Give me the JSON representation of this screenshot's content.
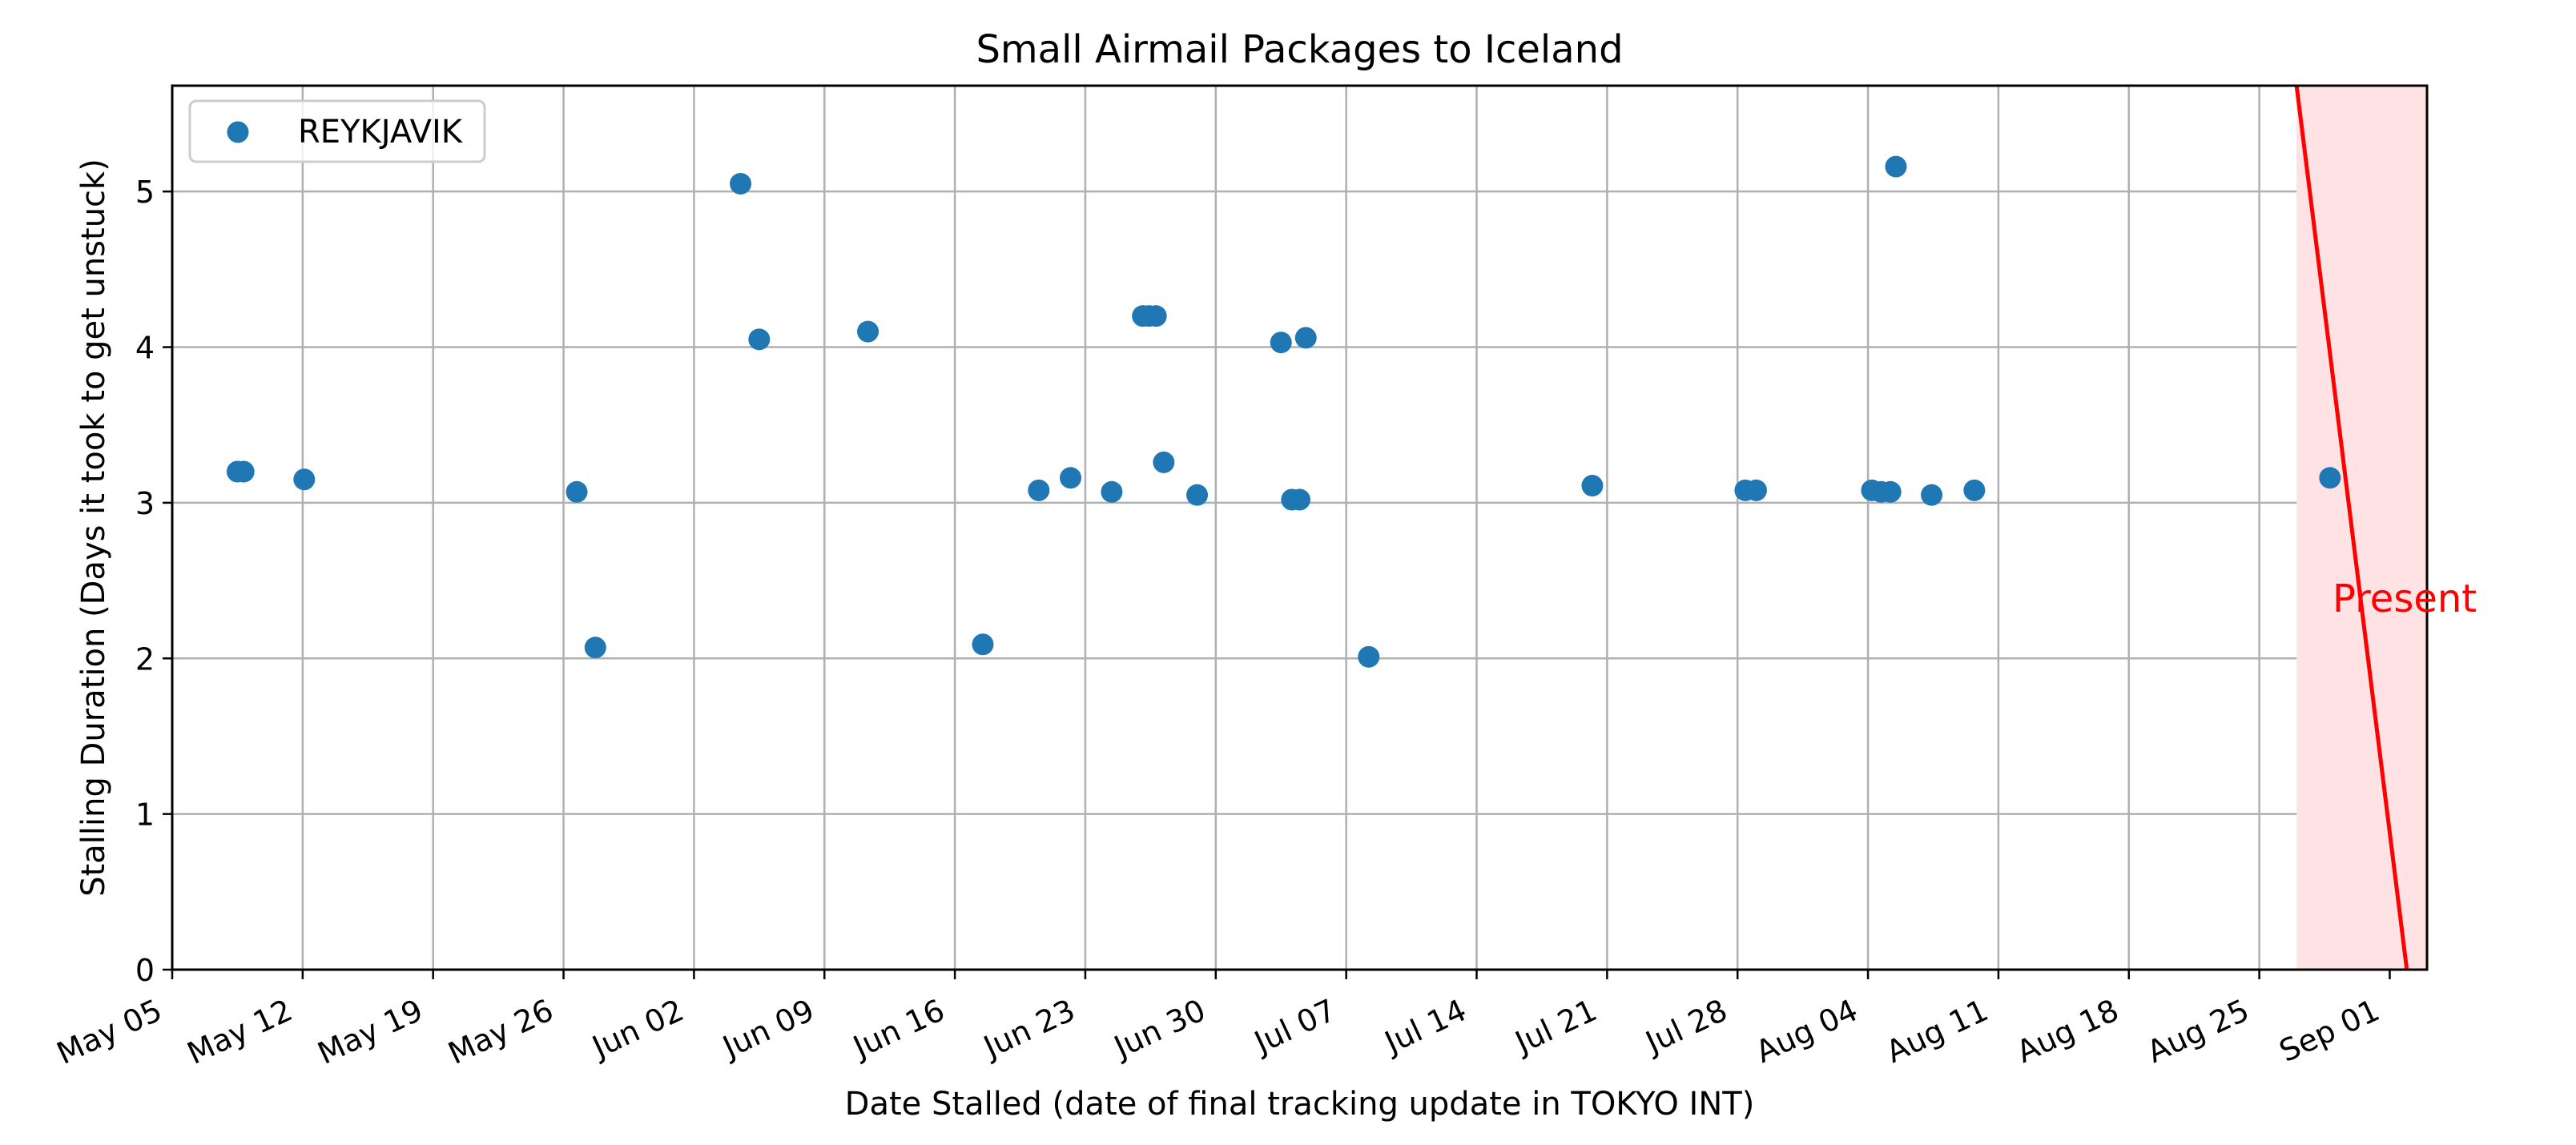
{
  "chart_data": {
    "type": "scatter",
    "title": "Small Airmail Packages to Iceland",
    "xlabel": "Date Stalled (date of final tracking update in TOKYO INT)",
    "ylabel": "Stalling Duration (Days it took to get unstuck)",
    "xlim": [
      "2024-05-05",
      "2024-09-03"
    ],
    "ylim": [
      0,
      5.68
    ],
    "x_ticks": [
      "May 05",
      "May 12",
      "May 19",
      "May 26",
      "Jun 02",
      "Jun 09",
      "Jun 16",
      "Jun 23",
      "Jun 30",
      "Jul 07",
      "Jul 14",
      "Jul 21",
      "Jul 28",
      "Aug 04",
      "Aug 11",
      "Aug 18",
      "Aug 25",
      "Sep 01"
    ],
    "y_ticks": [
      "0",
      "1",
      "2",
      "3",
      "4",
      "5"
    ],
    "grid": true,
    "legend_position": "upper-left",
    "series": [
      {
        "name": "REYKJAVIK",
        "color": "#1f77b4",
        "points": [
          {
            "x": "2024-05-08 12:00",
            "y": 3.2
          },
          {
            "x": "2024-05-08 20:00",
            "y": 3.2
          },
          {
            "x": "2024-05-12 02:00",
            "y": 3.15
          },
          {
            "x": "2024-05-26 17:00",
            "y": 3.07
          },
          {
            "x": "2024-05-27 17:00",
            "y": 2.07
          },
          {
            "x": "2024-06-04 12:00",
            "y": 5.05
          },
          {
            "x": "2024-06-05 12:00",
            "y": 4.05
          },
          {
            "x": "2024-06-11 08:00",
            "y": 4.1
          },
          {
            "x": "2024-06-17 12:00",
            "y": 2.09
          },
          {
            "x": "2024-06-20 12:00",
            "y": 3.08
          },
          {
            "x": "2024-06-22 05:00",
            "y": 3.16
          },
          {
            "x": "2024-06-24 10:00",
            "y": 3.07
          },
          {
            "x": "2024-06-26 02:00",
            "y": 4.2
          },
          {
            "x": "2024-06-26 10:00",
            "y": 4.2
          },
          {
            "x": "2024-06-26 19:00",
            "y": 4.2
          },
          {
            "x": "2024-06-27 05:00",
            "y": 3.26
          },
          {
            "x": "2024-06-29 00:00",
            "y": 3.05
          },
          {
            "x": "2024-07-03 12:00",
            "y": 4.03
          },
          {
            "x": "2024-07-04 02:00",
            "y": 3.02
          },
          {
            "x": "2024-07-04 12:00",
            "y": 3.02
          },
          {
            "x": "2024-07-04 20:00",
            "y": 4.06
          },
          {
            "x": "2024-07-08 05:00",
            "y": 2.01
          },
          {
            "x": "2024-07-20 05:00",
            "y": 3.11
          },
          {
            "x": "2024-07-28 10:00",
            "y": 3.08
          },
          {
            "x": "2024-07-29 00:00",
            "y": 3.08
          },
          {
            "x": "2024-08-04 05:00",
            "y": 3.08
          },
          {
            "x": "2024-08-04 17:00",
            "y": 3.07
          },
          {
            "x": "2024-08-05 05:00",
            "y": 3.07
          },
          {
            "x": "2024-08-05 12:00",
            "y": 5.16
          },
          {
            "x": "2024-08-07 10:00",
            "y": 3.05
          },
          {
            "x": "2024-08-09 17:00",
            "y": 3.08
          },
          {
            "x": "2024-08-28 19:00",
            "y": 3.16
          }
        ]
      }
    ],
    "annotation": {
      "text": "Present",
      "color": "#ff0000",
      "shade_color": "#ffe2e4",
      "line_start": {
        "x": "2024-08-27 00:00",
        "y": 5.68
      },
      "line_end": {
        "x": "2024-09-01 22:00",
        "y": 0
      },
      "shade_start": "2024-08-27 00:00"
    }
  }
}
